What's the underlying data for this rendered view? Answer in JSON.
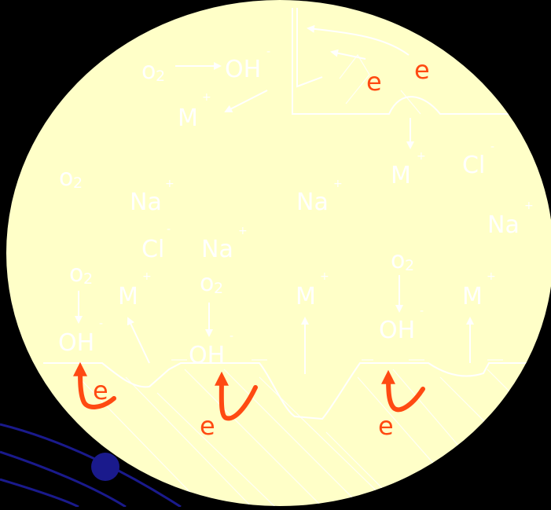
{
  "colors": {
    "background": "#000000",
    "droplet": "#ffffc8",
    "text": "#ffffff",
    "electron": "#ff4a12",
    "outline": "#1a1a8c"
  },
  "labels": {
    "o2": "o",
    "o2_sub": "2",
    "oh": "OH",
    "minus": "-",
    "m": "M",
    "plus": "+",
    "na": "Na",
    "cl": "Cl",
    "e": "e"
  }
}
